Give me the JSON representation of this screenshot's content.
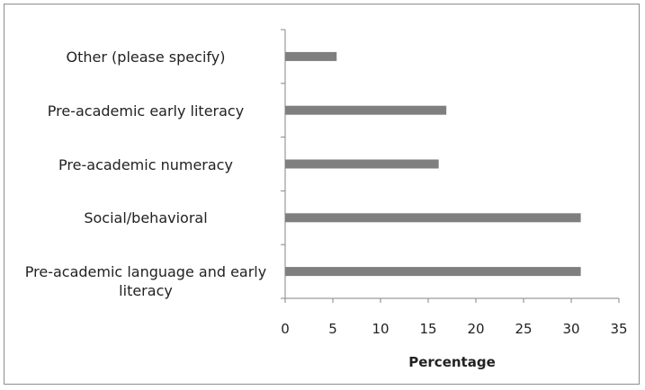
{
  "chart_data": {
    "type": "bar",
    "orientation": "horizontal",
    "categories": [
      "Other (please specify)",
      "Pre-academic early literacy",
      "Pre-academic numeracy",
      "Social/behavioral",
      "Pre-academic language and early literacy"
    ],
    "values": [
      5.4,
      16.9,
      16.1,
      31.0,
      31.0
    ],
    "xlabel": "Percentage",
    "ylabel": "",
    "title": "",
    "xlim": [
      0,
      35
    ],
    "xticks": [
      "0",
      "5",
      "10",
      "15",
      "20",
      "25",
      "30",
      "35"
    ],
    "grid": false,
    "legend": "none",
    "bar_color": "#7f7f7f"
  }
}
